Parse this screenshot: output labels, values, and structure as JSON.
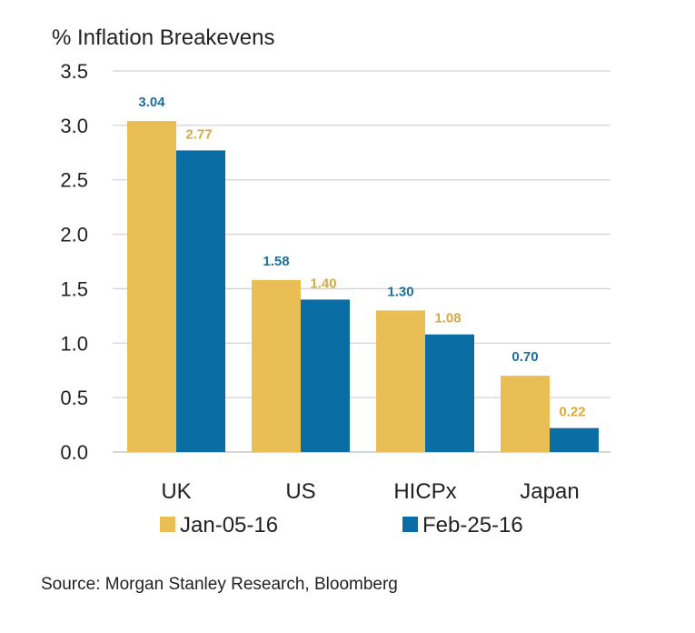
{
  "chart_data": {
    "type": "bar",
    "title": "% Inflation Breakevens",
    "categories": [
      "UK",
      "US",
      "HICPx",
      "Japan"
    ],
    "series": [
      {
        "name": "Jan-05-16",
        "color": "#E8BE55",
        "values": [
          3.04,
          1.58,
          1.3,
          0.7
        ]
      },
      {
        "name": "Feb-25-16",
        "color": "#0A6EA5",
        "values": [
          2.77,
          1.4,
          1.08,
          0.22
        ]
      }
    ],
    "data_labels": [
      [
        "3.04",
        "1.58",
        "1.30",
        "0.70"
      ],
      [
        "2.77",
        "1.40",
        "1.08",
        "0.22"
      ]
    ],
    "label_colors": [
      "#1E6F9A",
      "#D9A93A"
    ],
    "yticks": [
      "0.0",
      "0.5",
      "1.0",
      "1.5",
      "2.0",
      "2.5",
      "3.0",
      "3.5"
    ],
    "ylim": [
      0,
      3.5
    ],
    "grid": true,
    "legend_position": "bottom"
  },
  "source": "Source: Morgan Stanley Research, Bloomberg"
}
